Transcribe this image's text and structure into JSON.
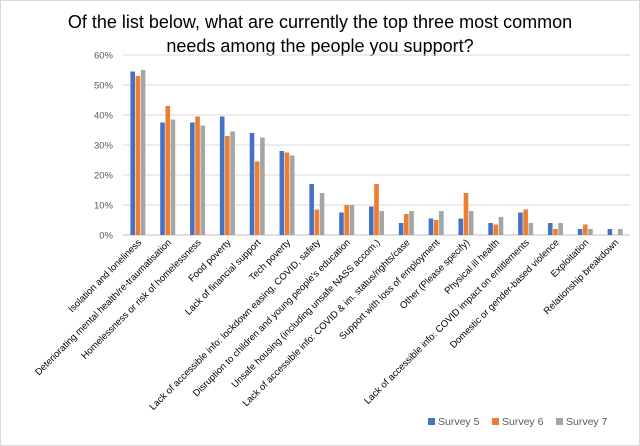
{
  "chart_data": {
    "type": "bar",
    "title_lines": [
      "Of the list below, what are currently the top three most common",
      "needs among the people you support?"
    ],
    "xlabel": "",
    "ylabel": "",
    "ylim": [
      0,
      0.6
    ],
    "yticks": [
      "0%",
      "10%",
      "20%",
      "30%",
      "40%",
      "50%",
      "60%"
    ],
    "grid": true,
    "legend_position": "bottom-right",
    "categories": [
      "Isolation and loneliness",
      "Deteriorating mental health/re-traumatisation",
      "Homelessness or risk of homelessness",
      "Food poverty",
      "Lack of financial support",
      "Tech poverty",
      "Lack of accessible info: lockdown easing, COVID, safety",
      "Disruption to children and young people's education",
      "Unsafe housing (including unsafe NASS accom.)",
      "Lack of accessible info: COVID & im. status/rights/case",
      "Support with loss of employment",
      "Other (Please specify)",
      "Physical ill health",
      "Lack of accessible info: COVID impact on entitlements",
      "Domestic or gender-based violence",
      "Exploitation",
      "Relationship breakdown"
    ],
    "series": [
      {
        "name": "Survey 5",
        "color": "#4472C4",
        "values": [
          0.545,
          0.375,
          0.375,
          0.395,
          0.34,
          0.28,
          0.17,
          0.075,
          0.095,
          0.04,
          0.055,
          0.055,
          0.04,
          0.075,
          0.04,
          0.02,
          0.02
        ]
      },
      {
        "name": "Survey 6",
        "color": "#ED7D31",
        "values": [
          0.53,
          0.43,
          0.395,
          0.33,
          0.245,
          0.275,
          0.085,
          0.1,
          0.17,
          0.07,
          0.05,
          0.14,
          0.035,
          0.085,
          0.02,
          0.035,
          0.0
        ]
      },
      {
        "name": "Survey 7",
        "color": "#A5A5A5",
        "values": [
          0.55,
          0.385,
          0.365,
          0.345,
          0.325,
          0.265,
          0.14,
          0.1,
          0.08,
          0.08,
          0.08,
          0.08,
          0.06,
          0.04,
          0.04,
          0.02,
          0.02
        ]
      }
    ]
  }
}
